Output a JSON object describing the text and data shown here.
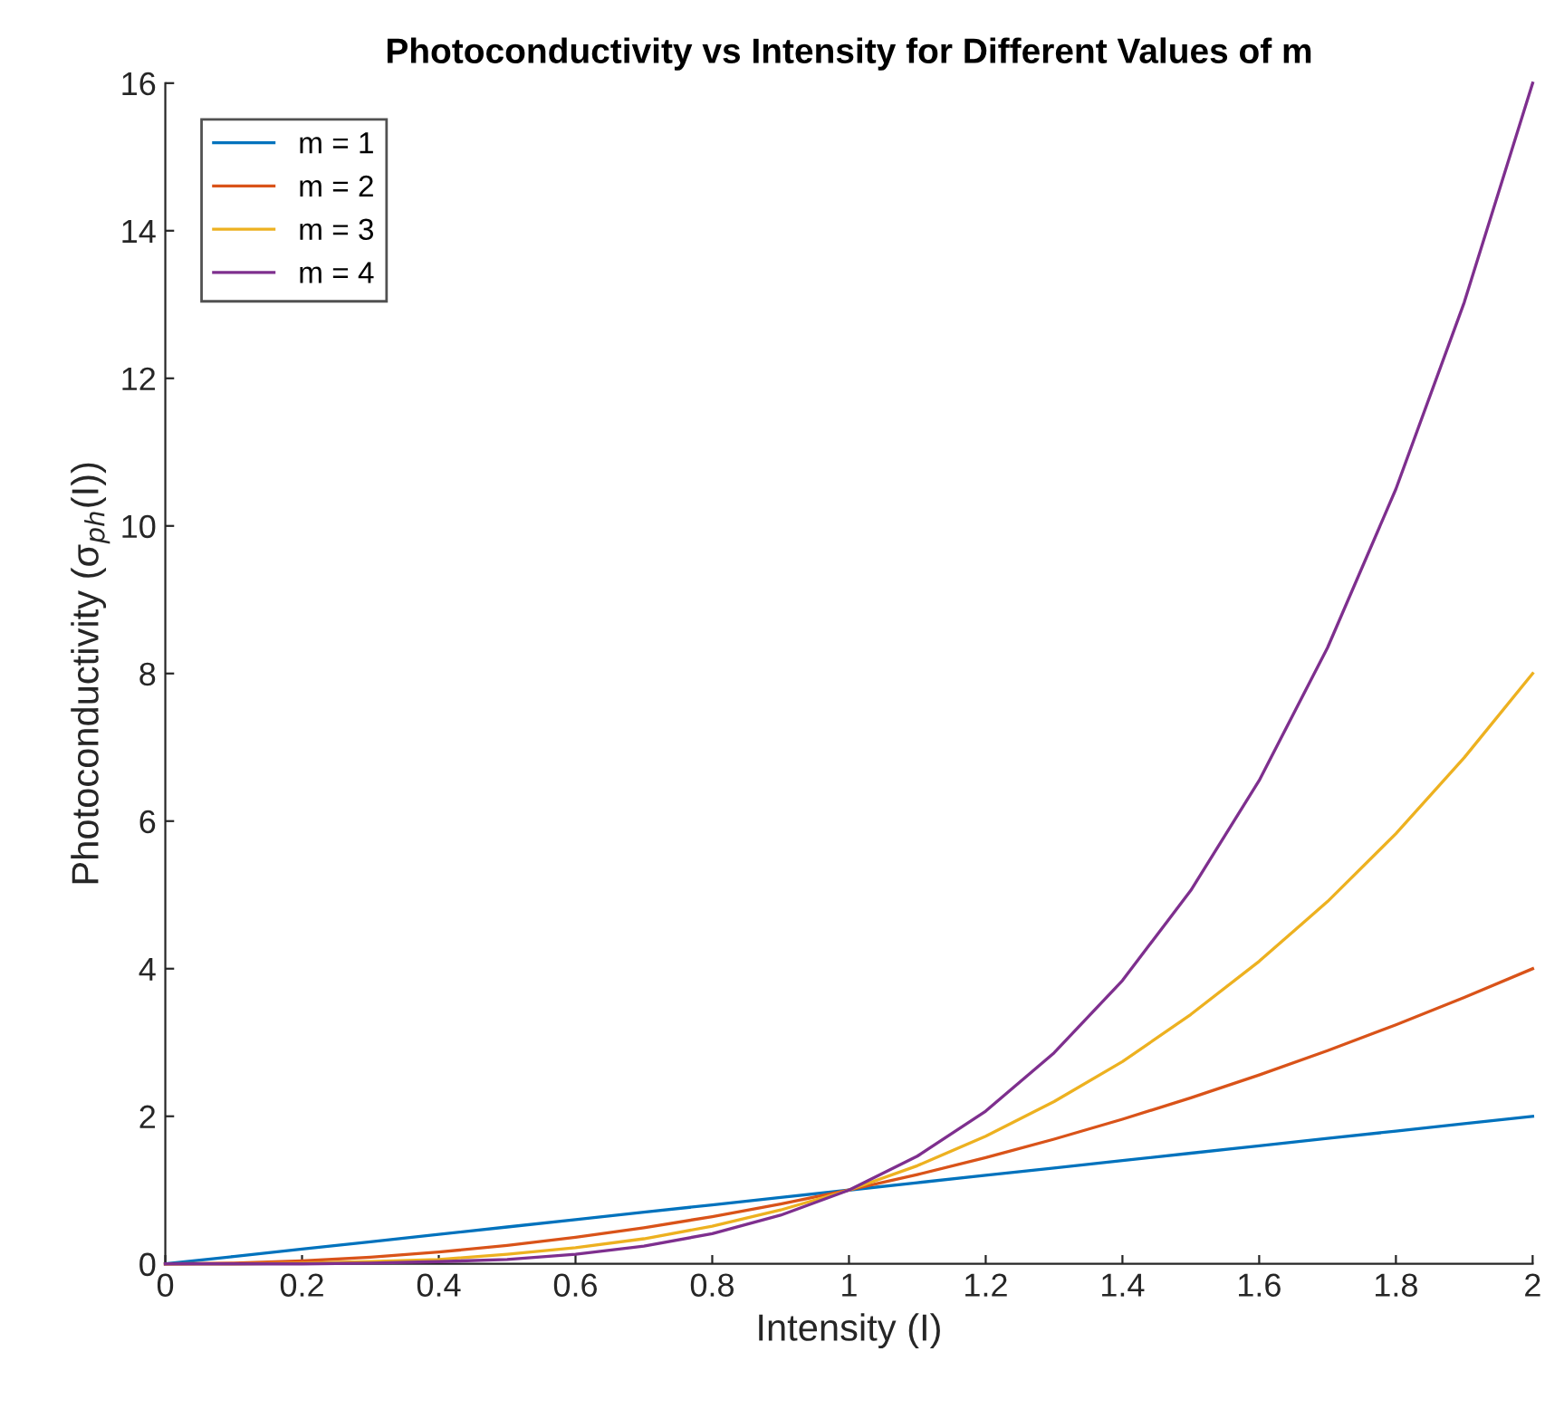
{
  "chart_data": {
    "type": "line",
    "title": "Photoconductivity vs Intensity for Different Values of m",
    "xlabel": "Intensity (I)",
    "ylabel": "Photoconductivity (σ$_{ph}$(I))",
    "x": [
      0,
      0.1,
      0.2,
      0.3,
      0.4,
      0.5,
      0.6,
      0.7,
      0.8,
      0.9,
      1,
      1.1,
      1.2,
      1.3,
      1.4,
      1.5,
      1.6,
      1.7,
      1.8,
      1.9,
      2
    ],
    "series": [
      {
        "name": "m = 1",
        "color": "#0072bd",
        "values": [
          0,
          0.1,
          0.2,
          0.3,
          0.4,
          0.5,
          0.6,
          0.7,
          0.8,
          0.9,
          1,
          1.1,
          1.2,
          1.3,
          1.4,
          1.5,
          1.6,
          1.7,
          1.8,
          1.9,
          2
        ]
      },
      {
        "name": "m = 2",
        "color": "#d95319",
        "values": [
          0,
          0.01,
          0.04,
          0.09,
          0.16,
          0.25,
          0.36,
          0.49,
          0.64,
          0.81,
          1,
          1.21,
          1.44,
          1.69,
          1.96,
          2.25,
          2.56,
          2.89,
          3.24,
          3.61,
          4
        ]
      },
      {
        "name": "m = 3",
        "color": "#edb120",
        "values": [
          0,
          0,
          0.01,
          0.03,
          0.06,
          0.13,
          0.22,
          0.34,
          0.51,
          0.73,
          1,
          1.33,
          1.73,
          2.2,
          2.74,
          3.38,
          4.1,
          4.91,
          5.83,
          6.86,
          8
        ]
      },
      {
        "name": "m = 4",
        "color": "#7e2f8e",
        "values": [
          0,
          0,
          0,
          0.01,
          0.03,
          0.06,
          0.13,
          0.24,
          0.41,
          0.66,
          1,
          1.46,
          2.07,
          2.86,
          3.84,
          5.06,
          6.55,
          8.35,
          10.5,
          13.03,
          16
        ]
      }
    ],
    "xlim": [
      0,
      2
    ],
    "xticks": [
      0,
      0.2,
      0.4,
      0.6,
      0.8,
      1,
      1.2,
      1.4,
      1.6,
      1.8,
      2
    ],
    "ylim": [
      0,
      16
    ],
    "yticks": [
      0,
      2,
      4,
      6,
      8,
      10,
      12,
      14,
      16
    ],
    "legend": "top left",
    "grid": false
  }
}
